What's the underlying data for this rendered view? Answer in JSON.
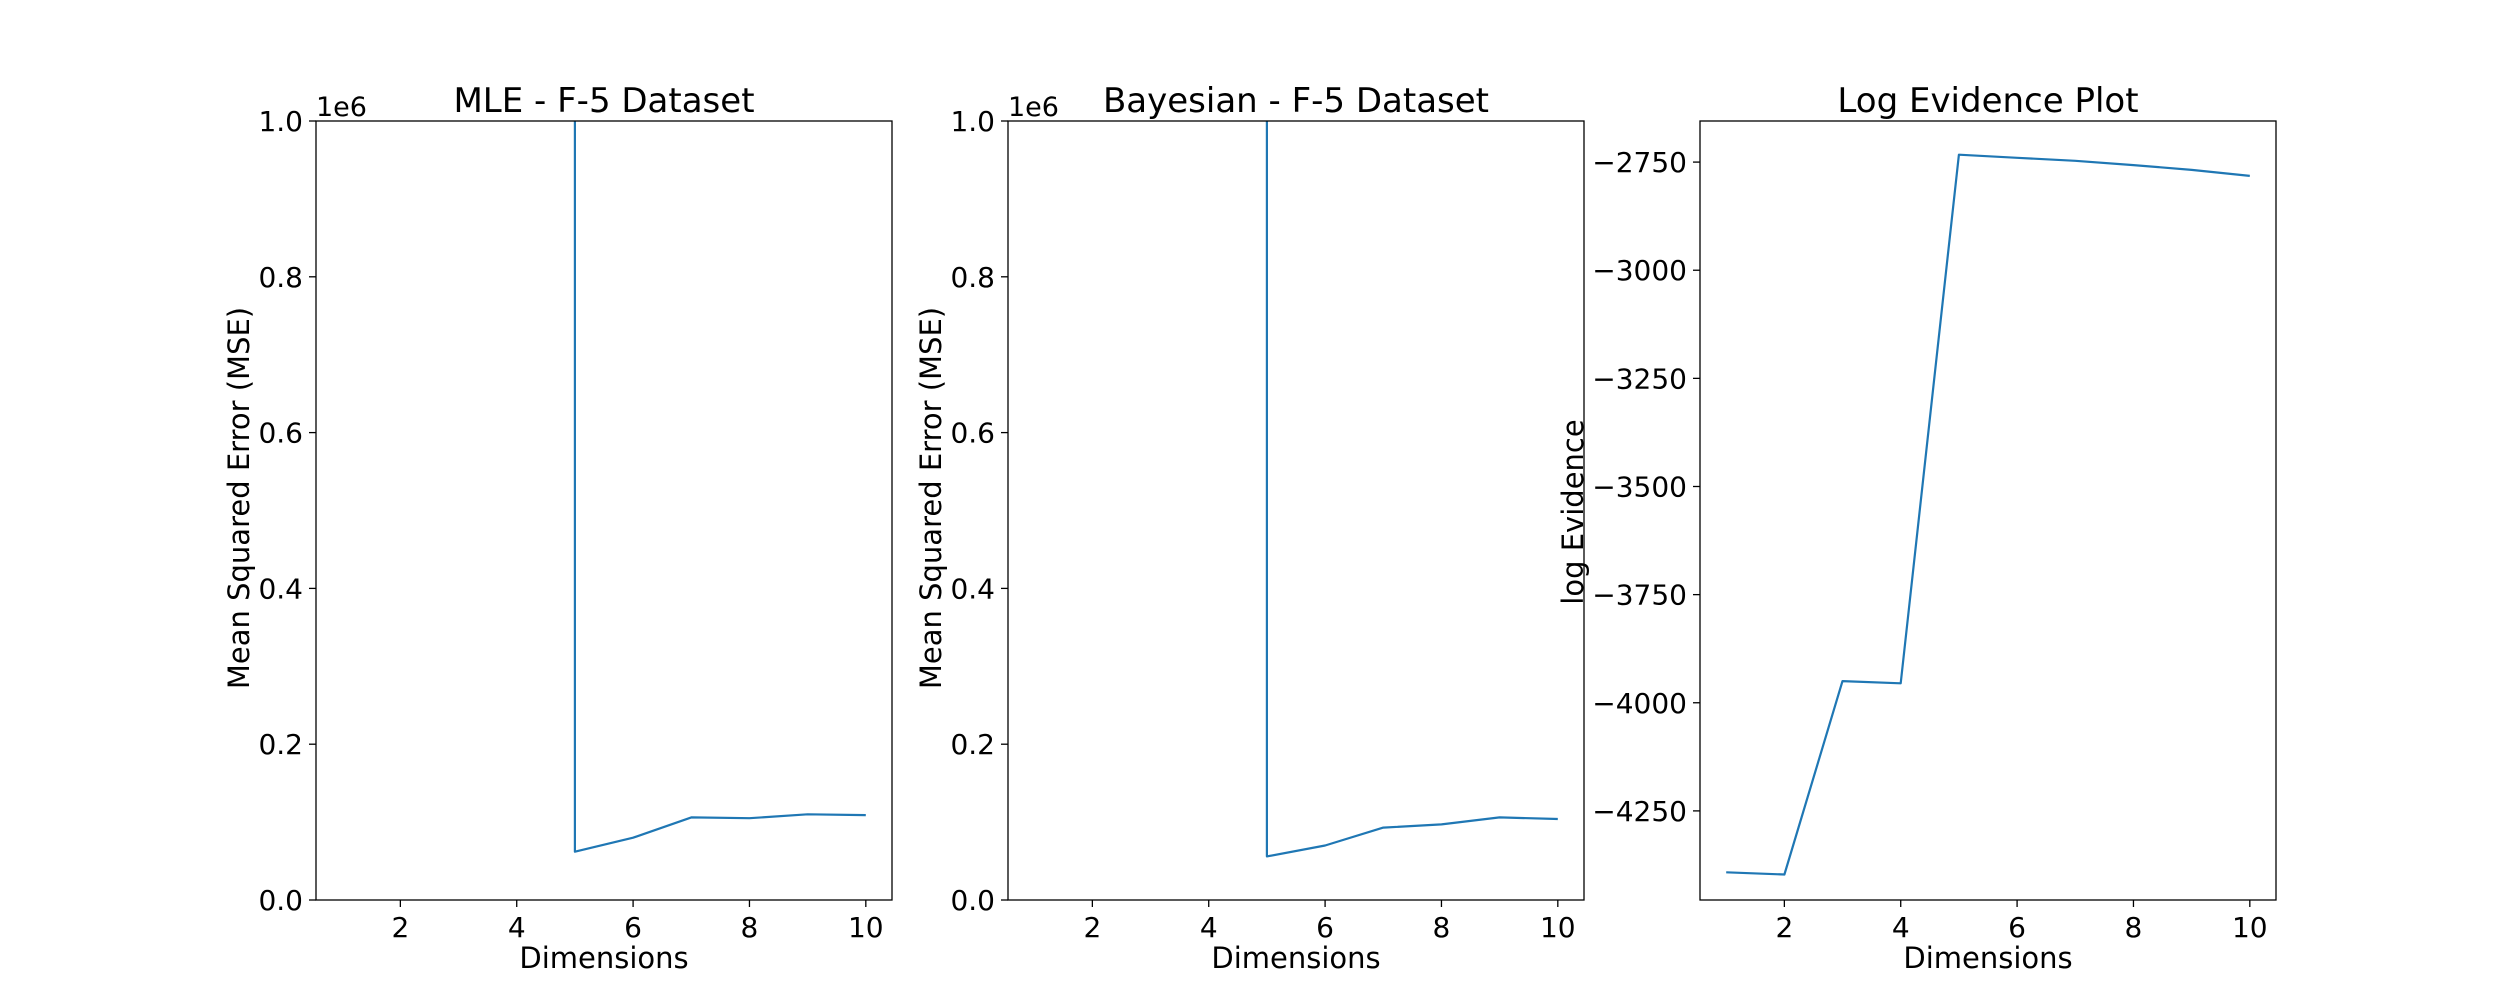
{
  "chart_data": [
    {
      "type": "line",
      "title": "MLE - F-5 Dataset",
      "xlabel": "Dimensions",
      "ylabel": "Mean Squared Error (MSE)",
      "y_offset_label": "1e6",
      "xlim": [
        0.55,
        10.45
      ],
      "ylim": [
        0,
        1000000
      ],
      "xticks": [
        2,
        4,
        6,
        8,
        10
      ],
      "yticks": [
        0,
        200000,
        400000,
        600000,
        800000,
        1000000
      ],
      "ytick_labels": [
        "0.0",
        "0.2",
        "0.4",
        "0.6",
        "0.8",
        "1.0"
      ],
      "grid": false,
      "line_color": "#1f77b4",
      "series": [
        {
          "x": [
            5,
            5,
            6,
            7,
            8,
            9,
            10
          ],
          "values": [
            1000000,
            62000,
            80000,
            106000,
            105000,
            110000,
            109000
          ]
        }
      ]
    },
    {
      "type": "line",
      "title": "Bayesian - F-5 Dataset",
      "xlabel": "Dimensions",
      "ylabel": "Mean Squared Error (MSE)",
      "y_offset_label": "1e6",
      "xlim": [
        0.55,
        10.45
      ],
      "ylim": [
        0,
        1000000
      ],
      "xticks": [
        2,
        4,
        6,
        8,
        10
      ],
      "yticks": [
        0,
        200000,
        400000,
        600000,
        800000,
        1000000
      ],
      "ytick_labels": [
        "0.0",
        "0.2",
        "0.4",
        "0.6",
        "0.8",
        "1.0"
      ],
      "grid": false,
      "line_color": "#1f77b4",
      "series": [
        {
          "x": [
            5,
            5,
            6,
            7,
            8,
            9,
            10
          ],
          "values": [
            1000000,
            56000,
            70000,
            93000,
            97000,
            106000,
            104000
          ]
        }
      ]
    },
    {
      "type": "line",
      "title": "Log Evidence Plot",
      "xlabel": "Dimensions",
      "ylabel": "log Evidence",
      "xlim": [
        0.55,
        10.45
      ],
      "ylim": [
        -4456,
        -2655
      ],
      "xticks": [
        2,
        4,
        6,
        8,
        10
      ],
      "yticks": [
        -4250,
        -4000,
        -3750,
        -3500,
        -3250,
        -3000,
        -2750
      ],
      "ytick_labels": [
        "−4250",
        "−4000",
        "−3750",
        "−3500",
        "−3250",
        "−3000",
        "−2750"
      ],
      "grid": false,
      "line_color": "#1f77b4",
      "series": [
        {
          "x": [
            1,
            2,
            3,
            4,
            5,
            6,
            7,
            8,
            9,
            10
          ],
          "values": [
            -4392,
            -4397,
            -3950,
            -3955,
            -2733,
            -2740,
            -2747,
            -2757,
            -2768,
            -2782
          ]
        }
      ]
    }
  ]
}
